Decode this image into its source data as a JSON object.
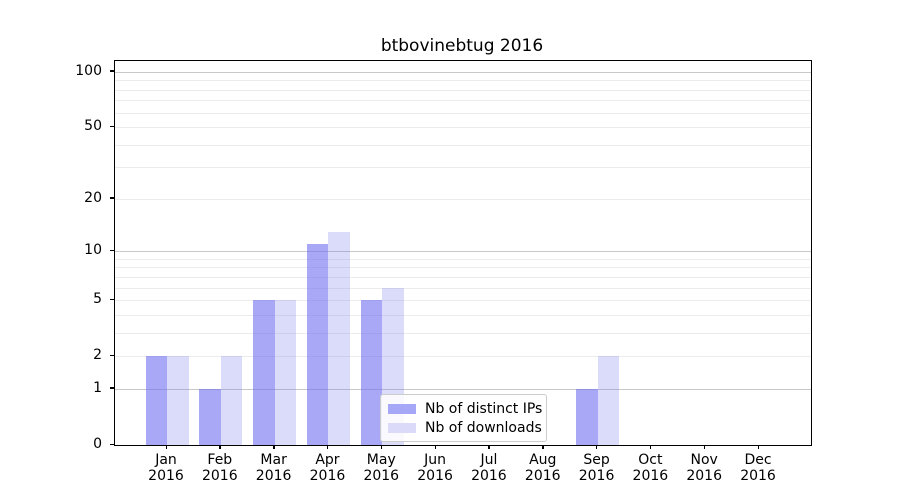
{
  "chart_data": {
    "type": "bar",
    "title": "btbovinebtug 2016",
    "categories": [
      "Jan",
      "Feb",
      "Mar",
      "Apr",
      "May",
      "Jun",
      "Jul",
      "Aug",
      "Sep",
      "Oct",
      "Nov",
      "Dec"
    ],
    "year_label": "2016",
    "series": [
      {
        "name": "Nb of distinct IPs",
        "values": [
          2,
          1,
          5,
          11,
          5,
          0,
          0,
          0,
          1,
          0,
          0,
          0
        ],
        "bar_color": "rgba(110,110,240,0.6)",
        "legend_color": "#a7a7f7"
      },
      {
        "name": "Nb of downloads",
        "values": [
          2,
          2,
          5,
          13,
          6,
          0,
          0,
          0,
          2,
          0,
          0,
          0
        ],
        "bar_color": "rgba(111,111,235,0.25)",
        "legend_color": "#dbdbf9"
      }
    ],
    "xlabel": "",
    "ylabel": "",
    "y_axis": {
      "scale": "log10(value+1)",
      "tick_values": [
        100,
        50,
        20,
        10,
        5,
        2,
        1,
        0
      ],
      "major_gridline_values": [
        1,
        10,
        100
      ],
      "minor_gridline_values": [
        2,
        3,
        4,
        5,
        6,
        7,
        8,
        9,
        20,
        30,
        40,
        50,
        60,
        70,
        80,
        90
      ],
      "ylim": [
        0,
        113
      ]
    },
    "legend": {
      "position": "lower center"
    },
    "colors": {
      "major_grid": "#c8c8c8",
      "minor_grid": "#ececec",
      "axis": "#000000",
      "background": "#ffffff"
    },
    "grid": "on"
  }
}
